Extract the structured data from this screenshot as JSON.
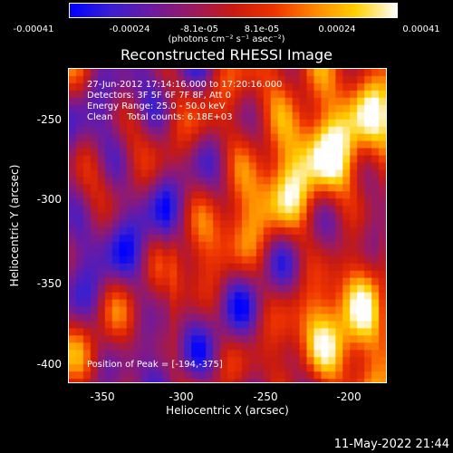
{
  "colorbar": {
    "tick_labels": [
      "-0.00041",
      "-0.00024",
      "-8.1e-05",
      "8.1e-05",
      "0.00024",
      "0.00041"
    ],
    "units": "(photons cm⁻² s⁻¹ asec⁻²)",
    "stops": [
      "#0000ff",
      "#3a1fd0",
      "#6d1aa0",
      "#9a1a60",
      "#c81a10",
      "#ee3300",
      "#ff8800",
      "#ffd000",
      "#ffffff"
    ]
  },
  "title": "Reconstructed RHESSI Image",
  "annotations": {
    "line1": "27-Jun-2012 17:14:16.000 to 17:20:16.000",
    "line2": "Detectors: 3F 5F 6F 7F 8F, Att 0",
    "line3": "Energy Range: 25.0 - 50.0 keV",
    "line4": "Clean     Total counts: 6.18E+03",
    "peak": "Position of Peak = [-194,-375]"
  },
  "axes": {
    "xlabel": "Heliocentric X (arcsec)",
    "ylabel": "Heliocentric Y (arcsec)",
    "x_ticks": [
      "-350",
      "-300",
      "-250",
      "-200"
    ],
    "y_ticks": [
      "-250",
      "-300",
      "-350",
      "-400"
    ]
  },
  "timestamp": "11-May-2022 21:44"
}
